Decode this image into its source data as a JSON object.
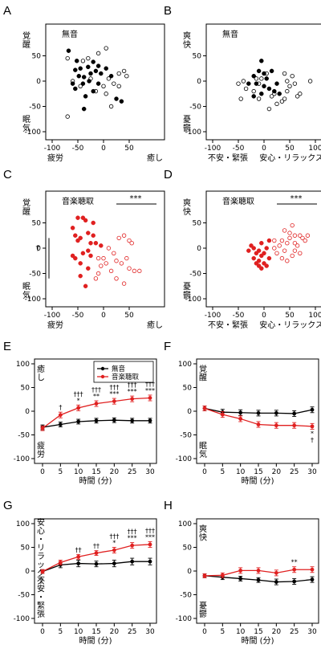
{
  "colors": {
    "black": "#000000",
    "red": "#e02020"
  },
  "chart_data": [
    {
      "panel": "A",
      "type": "scatter",
      "title": "無音",
      "x_neg_label": "疲労",
      "x_pos_label": "癒し",
      "y_pos_label": "覚醒",
      "y_neg_label": "眠気",
      "xlim": [
        -100,
        100
      ],
      "ylim": [
        -100,
        100
      ],
      "xticks": [
        -100,
        -50,
        0,
        50
      ],
      "yticks": [
        50,
        0,
        -50,
        -100
      ],
      "grid": false,
      "color": "#000000",
      "filled": [
        [
          -68,
          60
        ],
        [
          -52,
          40
        ],
        [
          -45,
          25
        ],
        [
          -30,
          28
        ],
        [
          -20,
          38
        ],
        [
          -10,
          30
        ],
        [
          -55,
          22
        ],
        [
          -48,
          10
        ],
        [
          -38,
          8
        ],
        [
          -25,
          15
        ],
        [
          -15,
          20
        ],
        [
          -5,
          15
        ],
        [
          5,
          25
        ],
        [
          -60,
          -5
        ],
        [
          -40,
          -5
        ],
        [
          -28,
          0
        ],
        [
          -10,
          -5
        ],
        [
          15,
          10
        ],
        [
          -55,
          -15
        ],
        [
          -35,
          -30
        ],
        [
          -20,
          -20
        ],
        [
          -38,
          -55
        ],
        [
          25,
          -35
        ],
        [
          35,
          -40
        ]
      ],
      "open": [
        [
          -70,
          45
        ],
        [
          -40,
          40
        ],
        [
          -30,
          45
        ],
        [
          -10,
          55
        ],
        [
          5,
          65
        ],
        [
          -60,
          0
        ],
        [
          -45,
          -10
        ],
        [
          -25,
          5
        ],
        [
          0,
          -10
        ],
        [
          10,
          5
        ],
        [
          20,
          -5
        ],
        [
          30,
          15
        ],
        [
          40,
          20
        ],
        [
          45,
          10
        ],
        [
          -15,
          -20
        ],
        [
          5,
          -25
        ],
        [
          15,
          -50
        ],
        [
          -70,
          -70
        ],
        [
          30,
          -10
        ]
      ]
    },
    {
      "panel": "B",
      "type": "scatter",
      "title": "無音",
      "x_neg_label": "不安・緊張",
      "x_pos_label": "安心・リラックス",
      "y_pos_label": "爽快",
      "y_neg_label": "憂鬱",
      "xlim": [
        -100,
        100
      ],
      "ylim": [
        -100,
        100
      ],
      "xticks": [
        -100,
        -50,
        0,
        50,
        100
      ],
      "yticks": [
        50,
        0,
        -50,
        -100
      ],
      "grid": false,
      "color": "#000000",
      "filled": [
        [
          -5,
          40
        ],
        [
          -10,
          20
        ],
        [
          0,
          15
        ],
        [
          5,
          5
        ],
        [
          -20,
          10
        ],
        [
          -15,
          -5
        ],
        [
          -30,
          -5
        ],
        [
          0,
          -10
        ],
        [
          10,
          -15
        ],
        [
          -5,
          -25
        ],
        [
          20,
          -20
        ],
        [
          25,
          -5
        ],
        [
          15,
          20
        ],
        [
          -20,
          -30
        ],
        [
          30,
          -25
        ]
      ],
      "open": [
        [
          -50,
          -5
        ],
        [
          -40,
          0
        ],
        [
          -35,
          -15
        ],
        [
          -20,
          -20
        ],
        [
          -10,
          -35
        ],
        [
          -5,
          5
        ],
        [
          5,
          15
        ],
        [
          15,
          -30
        ],
        [
          20,
          -25
        ],
        [
          35,
          -40
        ],
        [
          40,
          -35
        ],
        [
          45,
          -20
        ],
        [
          50,
          -10
        ],
        [
          55,
          10
        ],
        [
          60,
          -5
        ],
        [
          40,
          15
        ],
        [
          45,
          0
        ],
        [
          25,
          -45
        ],
        [
          10,
          -55
        ],
        [
          -10,
          -5
        ],
        [
          -15,
          5
        ],
        [
          65,
          -30
        ],
        [
          70,
          -25
        ],
        [
          -45,
          -35
        ],
        [
          90,
          0
        ]
      ]
    },
    {
      "panel": "C",
      "type": "scatter",
      "title": "音楽聴取",
      "x_neg_label": "疲労",
      "x_pos_label": "癒し",
      "y_pos_label": "覚醒",
      "y_neg_label": "眠気",
      "xlim": [
        -100,
        100
      ],
      "ylim": [
        -100,
        100
      ],
      "xticks": [
        -100,
        -50,
        0,
        50
      ],
      "yticks": [
        50,
        0,
        -50,
        -100
      ],
      "grid": false,
      "color": "#e02020",
      "annotation": "***",
      "bracket_label": "†",
      "filled": [
        [
          -60,
          40
        ],
        [
          -55,
          25
        ],
        [
          -45,
          20
        ],
        [
          -40,
          60
        ],
        [
          -30,
          30
        ],
        [
          -20,
          25
        ],
        [
          -50,
          60
        ],
        [
          -35,
          55
        ],
        [
          -25,
          10
        ],
        [
          -15,
          10
        ],
        [
          -5,
          5
        ],
        [
          -55,
          -20
        ],
        [
          -45,
          -30
        ],
        [
          -40,
          -10
        ],
        [
          -30,
          -5
        ],
        [
          -25,
          -15
        ],
        [
          -60,
          -15
        ],
        [
          -45,
          -55
        ],
        [
          -35,
          -75
        ],
        [
          -30,
          -40
        ],
        [
          -50,
          15
        ],
        [
          -20,
          50
        ]
      ],
      "open": [
        [
          30,
          20
        ],
        [
          40,
          25
        ],
        [
          50,
          15
        ],
        [
          55,
          10
        ],
        [
          10,
          0
        ],
        [
          20,
          -10
        ],
        [
          25,
          -25
        ],
        [
          35,
          -30
        ],
        [
          45,
          -20
        ],
        [
          50,
          -40
        ],
        [
          60,
          -45
        ],
        [
          70,
          -45
        ],
        [
          0,
          -20
        ],
        [
          5,
          -30
        ],
        [
          -10,
          -20
        ],
        [
          -5,
          -35
        ],
        [
          15,
          -45
        ],
        [
          -10,
          -50
        ],
        [
          25,
          -60
        ],
        [
          40,
          -70
        ],
        [
          -15,
          -60
        ]
      ]
    },
    {
      "panel": "D",
      "type": "scatter",
      "title": "音楽聴取",
      "x_neg_label": "不安・緊張",
      "x_pos_label": "安心・リラックス",
      "y_pos_label": "爽快",
      "y_neg_label": "憂鬱",
      "xlim": [
        -100,
        100
      ],
      "ylim": [
        -100,
        100
      ],
      "xticks": [
        -100,
        -50,
        0,
        50,
        100
      ],
      "yticks": [
        50,
        0,
        -50,
        -100
      ],
      "grid": false,
      "color": "#e02020",
      "annotation": "***",
      "filled": [
        [
          -20,
          0
        ],
        [
          -10,
          -5
        ],
        [
          -5,
          10
        ],
        [
          -15,
          -10
        ],
        [
          -25,
          5
        ],
        [
          -20,
          -20
        ],
        [
          -10,
          -25
        ],
        [
          -5,
          -15
        ],
        [
          0,
          -30
        ],
        [
          -10,
          -35
        ],
        [
          5,
          -35
        ],
        [
          10,
          -20
        ],
        [
          -15,
          -30
        ],
        [
          5,
          0
        ],
        [
          10,
          15
        ],
        [
          -30,
          -5
        ],
        [
          -5,
          -40
        ],
        [
          0,
          -10
        ]
      ],
      "open": [
        [
          20,
          0
        ],
        [
          30,
          5
        ],
        [
          35,
          15
        ],
        [
          40,
          -5
        ],
        [
          45,
          10
        ],
        [
          50,
          20
        ],
        [
          55,
          45
        ],
        [
          60,
          25
        ],
        [
          65,
          5
        ],
        [
          70,
          25
        ],
        [
          75,
          20
        ],
        [
          80,
          15
        ],
        [
          85,
          25
        ],
        [
          40,
          35
        ],
        [
          50,
          30
        ],
        [
          60,
          10
        ],
        [
          35,
          -20
        ],
        [
          45,
          -25
        ],
        [
          55,
          -15
        ],
        [
          70,
          -10
        ],
        [
          25,
          -10
        ],
        [
          60,
          -5
        ],
        [
          20,
          15
        ]
      ]
    },
    {
      "panel": "E",
      "type": "line",
      "y_pos_label": "癒し",
      "y_neg_label": "疲労",
      "xlabel": "時間 (分)",
      "x": [
        0,
        5,
        10,
        15,
        20,
        25,
        30
      ],
      "xticks": [
        0,
        5,
        10,
        15,
        20,
        25,
        30
      ],
      "ylim": [
        -100,
        100
      ],
      "yticks": [
        100,
        50,
        0,
        -50,
        -100
      ],
      "grid": false,
      "legend_position": "top-right",
      "series": [
        {
          "name": "無音",
          "color": "#000000",
          "values": [
            -34,
            -28,
            -22,
            -20,
            -19,
            -20,
            -20
          ],
          "err": [
            5,
            5,
            5,
            5,
            5,
            5,
            5
          ]
        },
        {
          "name": "音楽聴取",
          "color": "#e02020",
          "values": [
            -36,
            -8,
            7,
            16,
            21,
            26,
            28
          ],
          "err": [
            5,
            6,
            6,
            6,
            6,
            6,
            6
          ]
        }
      ],
      "sig_dagger": [
        "",
        "†",
        "†††",
        "†††",
        "†††",
        "†††",
        "†††"
      ],
      "sig_star": [
        "",
        "",
        "*",
        "**",
        "***",
        "***",
        "***"
      ]
    },
    {
      "panel": "F",
      "type": "line",
      "y_pos_label": "覚醒",
      "y_neg_label": "眠気",
      "xlabel": "時間 (分)",
      "x": [
        0,
        5,
        10,
        15,
        20,
        25,
        30
      ],
      "xticks": [
        0,
        5,
        10,
        15,
        20,
        25,
        30
      ],
      "ylim": [
        -100,
        100
      ],
      "yticks": [
        100,
        50,
        0,
        -50,
        -100
      ],
      "grid": false,
      "series": [
        {
          "name": "無音",
          "color": "#000000",
          "values": [
            6,
            -2,
            -3,
            -4,
            -4,
            -5,
            3
          ],
          "err": [
            5,
            6,
            6,
            6,
            6,
            6,
            6
          ]
        },
        {
          "name": "音楽聴取",
          "color": "#e02020",
          "values": [
            6,
            -7,
            -16,
            -28,
            -30,
            -30,
            -32
          ],
          "err": [
            5,
            6,
            6,
            6,
            6,
            6,
            6
          ]
        }
      ],
      "sig_dagger": [
        "",
        "",
        "",
        "",
        "",
        "",
        "†"
      ],
      "sig_star": [
        "",
        "",
        "",
        "",
        "",
        "",
        "*"
      ]
    },
    {
      "panel": "G",
      "type": "line",
      "y_pos_label": "安心・リラックス",
      "y_neg_label": "不安・緊張",
      "xlabel": "時間 (分)",
      "x": [
        0,
        5,
        10,
        15,
        20,
        25,
        30
      ],
      "xticks": [
        0,
        5,
        10,
        15,
        20,
        25,
        30
      ],
      "ylim": [
        -100,
        100
      ],
      "yticks": [
        100,
        50,
        0,
        -50,
        -100
      ],
      "grid": false,
      "series": [
        {
          "name": "無音",
          "color": "#000000",
          "values": [
            -1,
            13,
            16,
            15,
            16,
            20,
            20
          ],
          "err": [
            4,
            6,
            7,
            6,
            7,
            7,
            7
          ]
        },
        {
          "name": "音楽聴取",
          "color": "#e02020",
          "values": [
            -1,
            18,
            30,
            38,
            44,
            54,
            56
          ],
          "err": [
            4,
            5,
            5,
            5,
            6,
            6,
            6
          ]
        }
      ],
      "sig_dagger": [
        "",
        "",
        "††",
        "††",
        "†††",
        "†††",
        "†††"
      ],
      "sig_star": [
        "",
        "",
        "",
        "",
        "*",
        "***",
        "***"
      ]
    },
    {
      "panel": "H",
      "type": "line",
      "y_pos_label": "爽快",
      "y_neg_label": "憂鬱",
      "xlabel": "時間 (分)",
      "x": [
        0,
        5,
        10,
        15,
        20,
        25,
        30
      ],
      "xticks": [
        0,
        5,
        10,
        15,
        20,
        25,
        30
      ],
      "ylim": [
        -100,
        100
      ],
      "yticks": [
        100,
        50,
        0,
        -50,
        -100
      ],
      "grid": false,
      "series": [
        {
          "name": "無音",
          "color": "#000000",
          "values": [
            -10,
            -13,
            -16,
            -19,
            -23,
            -22,
            -18
          ],
          "err": [
            4,
            5,
            5,
            5,
            6,
            6,
            6
          ]
        },
        {
          "name": "音楽聴取",
          "color": "#e02020",
          "values": [
            -10,
            -9,
            1,
            1,
            -4,
            3,
            3
          ],
          "err": [
            4,
            5,
            6,
            6,
            6,
            6,
            6
          ]
        }
      ],
      "sig_dagger": [
        "",
        "",
        "",
        "",
        "",
        "",
        ""
      ],
      "sig_star": [
        "",
        "",
        "",
        "",
        "",
        "**",
        ""
      ]
    }
  ]
}
